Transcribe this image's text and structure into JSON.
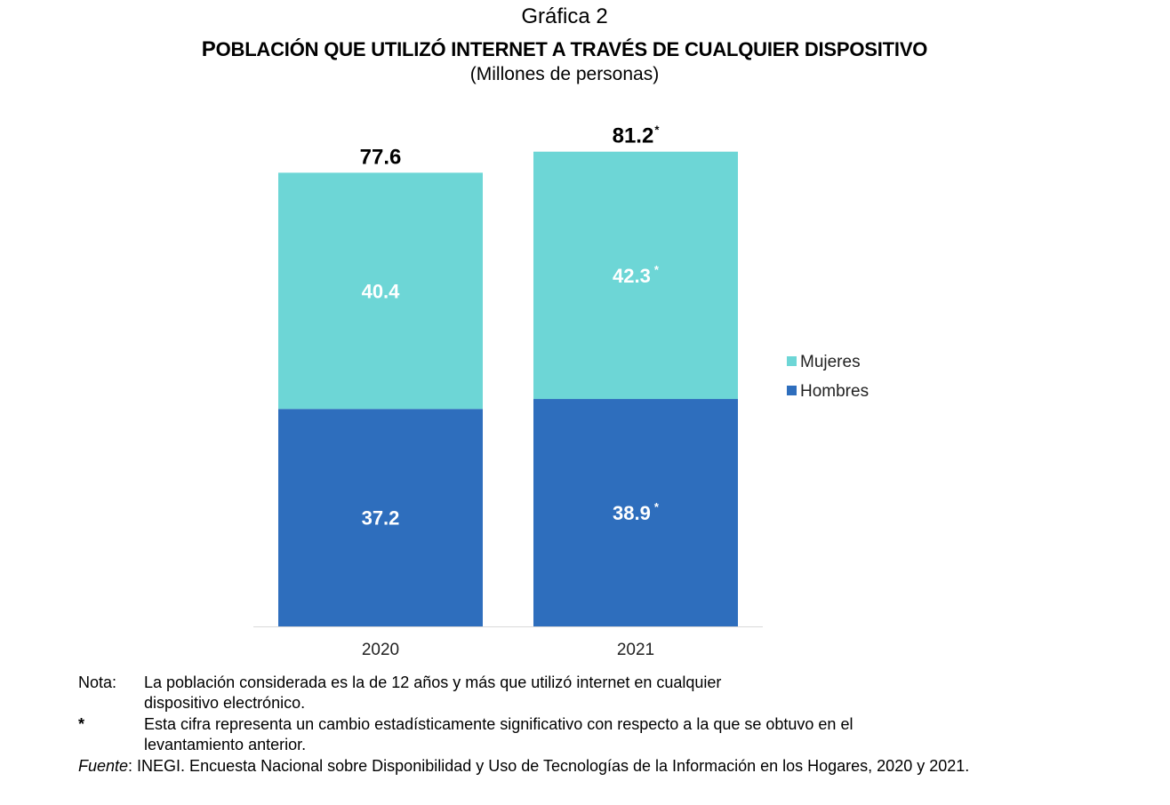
{
  "chart_data": {
    "type": "bar",
    "stacked": true,
    "label": "Gráfica 2",
    "title": "Población que utilizó internet a través de cualquier dispositivo",
    "subtitle": "(Millones de personas)",
    "categories": [
      "2020",
      "2021"
    ],
    "series": [
      {
        "name": "Hombres",
        "color": "#2e6ebd",
        "values": [
          37.2,
          38.9
        ],
        "labels": [
          "37.2",
          "38.9"
        ],
        "significant": [
          false,
          true
        ]
      },
      {
        "name": "Mujeres",
        "color": "#6dd6d6",
        "values": [
          40.4,
          42.3
        ],
        "labels": [
          "40.4",
          "42.3"
        ],
        "significant": [
          false,
          true
        ]
      }
    ],
    "totals": [
      "77.6",
      "81.2"
    ],
    "totals_significant": [
      false,
      true
    ],
    "significance_mark": "*",
    "legend": [
      "Mujeres",
      "Hombres"
    ],
    "legend_position": "right",
    "ylim": [
      0,
      85
    ],
    "grid": false
  },
  "notes": {
    "nota_label": "Nota:",
    "nota_line1": "La población considerada es la de 12 años y más que utilizó internet en cualquier",
    "nota_line2": "dispositivo electrónico.",
    "star_label": "*",
    "star_line1": "Esta cifra representa un cambio estadísticamente significativo con respecto a la que se obtuvo en el",
    "star_line2": "levantamiento anterior.",
    "fuente_label": "Fuente",
    "fuente_text": ": INEGI. Encuesta Nacional sobre Disponibilidad y Uso de Tecnologías de la Información en los Hogares, 2020 y 2021."
  }
}
